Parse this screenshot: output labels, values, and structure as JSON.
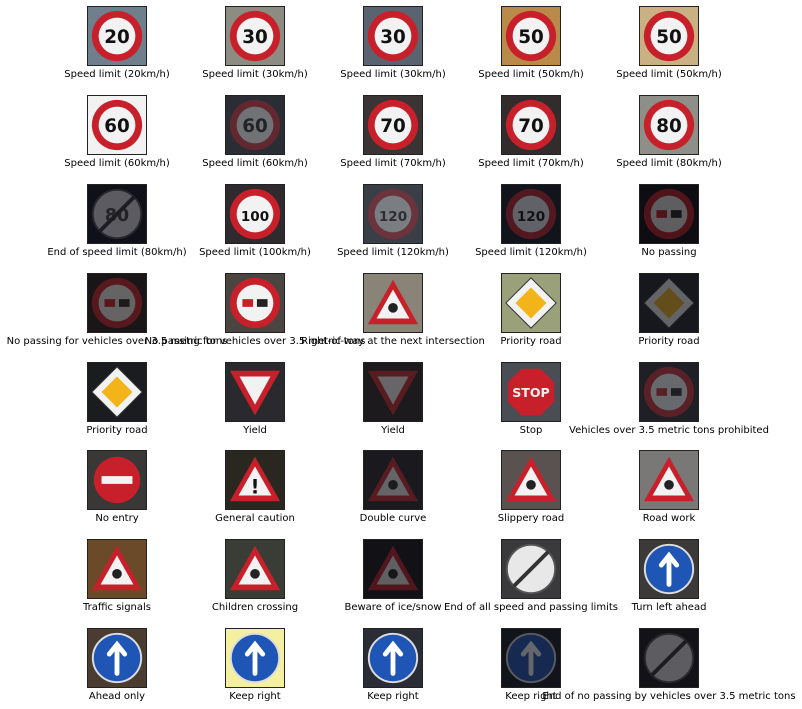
{
  "figure": {
    "rows": [
      [
        {
          "label": "Speed limit (20km/h)",
          "icon": "speed-limit-20-sign",
          "bg": "#6f7f8c",
          "kind": "round-red",
          "text": "20",
          "dark": false
        },
        {
          "label": "Speed limit (30km/h)",
          "icon": "speed-limit-30-sign",
          "bg": "#8c8c82",
          "kind": "round-red",
          "text": "30",
          "dark": false
        },
        {
          "label": "Speed limit (30km/h)",
          "icon": "speed-limit-30-sign",
          "bg": "#5a6470",
          "kind": "round-red",
          "text": "30",
          "dark": false
        },
        {
          "label": "Speed limit (50km/h)",
          "icon": "speed-limit-50-sign",
          "bg": "#b98a4a",
          "kind": "round-red",
          "text": "50",
          "dark": false
        },
        {
          "label": "Speed limit (50km/h)",
          "icon": "speed-limit-50-sign",
          "bg": "#c9b184",
          "kind": "round-red",
          "text": "50",
          "dark": false
        }
      ],
      [
        {
          "label": "Speed limit (60km/h)",
          "icon": "speed-limit-60-sign",
          "bg": "#f2f2f2",
          "kind": "round-red",
          "text": "60",
          "dark": false
        },
        {
          "label": "Speed limit (60km/h)",
          "icon": "speed-limit-60-sign",
          "bg": "#2a2d34",
          "kind": "round-red",
          "text": "60",
          "dark": true
        },
        {
          "label": "Speed limit (70km/h)",
          "icon": "speed-limit-70-sign",
          "bg": "#3a3434",
          "kind": "round-red",
          "text": "70",
          "dark": false
        },
        {
          "label": "Speed limit (70km/h)",
          "icon": "speed-limit-70-sign",
          "bg": "#322c2c",
          "kind": "round-red",
          "text": "70",
          "dark": false
        },
        {
          "label": "Speed limit (80km/h)",
          "icon": "speed-limit-80-sign",
          "bg": "#8d8f88",
          "kind": "round-red",
          "text": "80",
          "dark": false
        }
      ],
      [
        {
          "label": "End of speed limit (80km/h)",
          "icon": "end-speed-limit-80-sign",
          "bg": "#101018",
          "kind": "round-end",
          "text": "80",
          "dark": true
        },
        {
          "label": "Speed limit (100km/h)",
          "icon": "speed-limit-100-sign",
          "bg": "#2e2a2e",
          "kind": "round-red",
          "text": "100",
          "dark": false
        },
        {
          "label": "Speed limit (120km/h)",
          "icon": "speed-limit-120-sign",
          "bg": "#3a3e46",
          "kind": "round-red",
          "text": "120",
          "dark": true
        },
        {
          "label": "Speed limit (120km/h)",
          "icon": "speed-limit-120-sign",
          "bg": "#12141c",
          "kind": "round-red",
          "text": "120",
          "dark": true
        },
        {
          "label": "No passing",
          "icon": "no-passing-sign",
          "bg": "#0e0e12",
          "kind": "round-red",
          "text": "",
          "dark": true
        }
      ],
      [
        {
          "label": "No passing for vehicles over 3.5 metric tons",
          "icon": "no-passing-trucks-sign",
          "bg": "#1a1618",
          "kind": "round-red",
          "text": "",
          "dark": true
        },
        {
          "label": "No passing for vehicles over 3.5 metric tons",
          "icon": "no-passing-trucks-sign",
          "bg": "#4a4540",
          "kind": "round-red",
          "text": "",
          "dark": false
        },
        {
          "label": "Right-of-way at the next intersection",
          "icon": "right-of-way-sign",
          "bg": "#8a8478",
          "kind": "triangle",
          "text": "",
          "dark": false
        },
        {
          "label": "Priority road",
          "icon": "priority-road-sign",
          "bg": "#9aa07a",
          "kind": "diamond",
          "text": "",
          "dark": false
        },
        {
          "label": "Priority road",
          "icon": "priority-road-sign",
          "bg": "#16181e",
          "kind": "diamond",
          "text": "",
          "dark": true
        }
      ],
      [
        {
          "label": "Priority road",
          "icon": "priority-road-sign",
          "bg": "#1a1c20",
          "kind": "diamond",
          "text": "",
          "dark": false
        },
        {
          "label": "Yield",
          "icon": "yield-sign",
          "bg": "#2a2a2e",
          "kind": "yield",
          "text": "",
          "dark": false
        },
        {
          "label": "Yield",
          "icon": "yield-sign",
          "bg": "#1c1a1c",
          "kind": "yield",
          "text": "",
          "dark": true
        },
        {
          "label": "Stop",
          "icon": "stop-sign",
          "bg": "#4a4e54",
          "kind": "stop",
          "text": "STOP",
          "dark": false
        },
        {
          "label": "Vehicles over 3.5 metric tons prohibited",
          "icon": "trucks-prohibited-sign",
          "bg": "#1e2026",
          "kind": "round-red",
          "text": "",
          "dark": true
        }
      ],
      [
        {
          "label": "No entry",
          "icon": "no-entry-sign",
          "bg": "#3a3836",
          "kind": "no-entry",
          "text": "",
          "dark": false
        },
        {
          "label": "General caution",
          "icon": "general-caution-sign",
          "bg": "#2a2620",
          "kind": "triangle",
          "text": "!",
          "dark": false
        },
        {
          "label": "Double curve",
          "icon": "double-curve-sign",
          "bg": "#1a1a1e",
          "kind": "triangle",
          "text": "",
          "dark": true
        },
        {
          "label": "Slippery road",
          "icon": "slippery-road-sign",
          "bg": "#5a5250",
          "kind": "triangle",
          "text": "",
          "dark": false
        },
        {
          "label": "Road work",
          "icon": "road-work-sign",
          "bg": "#7a7876",
          "kind": "triangle",
          "text": "",
          "dark": false
        }
      ],
      [
        {
          "label": "Traffic signals",
          "icon": "traffic-signals-sign",
          "bg": "#6a4a28",
          "kind": "triangle",
          "text": "",
          "dark": false
        },
        {
          "label": "Children crossing",
          "icon": "children-crossing-sign",
          "bg": "#3a3c36",
          "kind": "triangle",
          "text": "",
          "dark": false
        },
        {
          "label": "Beware of ice/snow",
          "icon": "ice-snow-sign",
          "bg": "#121216",
          "kind": "triangle",
          "text": "",
          "dark": true
        },
        {
          "label": "End of all speed and passing limits",
          "icon": "end-all-limits-sign",
          "bg": "#3a3a3c",
          "kind": "round-end",
          "text": "",
          "dark": false
        },
        {
          "label": "Turn left ahead",
          "icon": "turn-left-ahead-sign",
          "bg": "#3c3a38",
          "kind": "round-blue",
          "text": "",
          "dark": false
        }
      ],
      [
        {
          "label": "Ahead only",
          "icon": "ahead-only-sign",
          "bg": "#4a3c30",
          "kind": "round-blue",
          "text": "",
          "dark": false
        },
        {
          "label": "Keep right",
          "icon": "keep-right-sign",
          "bg": "#f4f0a0",
          "kind": "round-blue",
          "text": "",
          "dark": false
        },
        {
          "label": "Keep right",
          "icon": "keep-right-sign",
          "bg": "#2a2c36",
          "kind": "round-blue",
          "text": "",
          "dark": false
        },
        {
          "label": "Keep right",
          "icon": "keep-right-sign",
          "bg": "#12141c",
          "kind": "round-blue",
          "text": "",
          "dark": true
        },
        {
          "label": "End of no passing by vehicles over 3.5 metric tons",
          "icon": "end-no-passing-trucks-sign",
          "bg": "#121218",
          "kind": "round-end",
          "text": "",
          "dark": true
        }
      ]
    ]
  }
}
